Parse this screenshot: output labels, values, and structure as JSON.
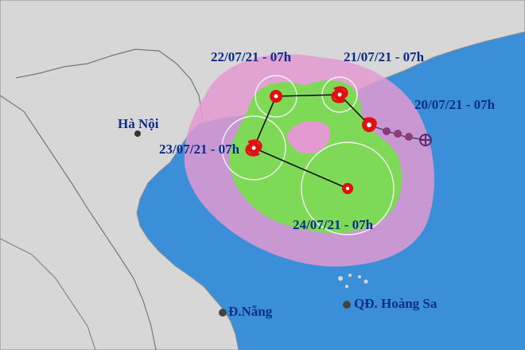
{
  "colors": {
    "sea": "#3b8fd9",
    "land": "#d7d7d7",
    "border": "#7a7a7a",
    "cone_outer": "#e39ad0",
    "cone_inner": "#7ed957",
    "label_text": "#0b2d8a",
    "storm_red": "#e01010",
    "track_line": "#111111"
  },
  "labels": {
    "hanoi": "Hà Nội",
    "danang": "Đ.Nẵng",
    "hoangsa": "QĐ. Hoàng Sa"
  },
  "forecast_points": [
    {
      "time_label": "20/07/21 - 07h",
      "icon": "past-storm-icon"
    },
    {
      "time_label": "21/07/21 - 07h",
      "icon": "tropical-storm-icon"
    },
    {
      "time_label": "22/07/21 - 07h",
      "icon": "low-pressure-icon"
    },
    {
      "time_label": "23/07/21 - 07h",
      "icon": "tropical-storm-icon"
    },
    {
      "time_label": "24/07/21 - 07h",
      "icon": "low-pressure-icon"
    }
  ]
}
